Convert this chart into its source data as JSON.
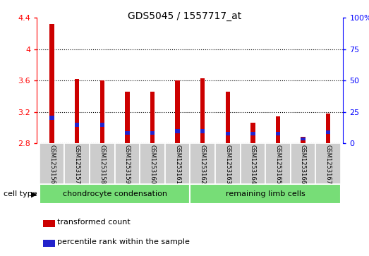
{
  "title": "GDS5045 / 1557717_at",
  "samples": [
    "GSM1253156",
    "GSM1253157",
    "GSM1253158",
    "GSM1253159",
    "GSM1253160",
    "GSM1253161",
    "GSM1253162",
    "GSM1253163",
    "GSM1253164",
    "GSM1253165",
    "GSM1253166",
    "GSM1253167"
  ],
  "red_values": [
    4.32,
    3.62,
    3.6,
    3.46,
    3.46,
    3.6,
    3.63,
    3.46,
    3.06,
    3.14,
    2.88,
    3.18
  ],
  "blue_bottoms": [
    3.1,
    3.01,
    3.01,
    2.91,
    2.91,
    2.93,
    2.93,
    2.9,
    2.9,
    2.9,
    2.84,
    2.92
  ],
  "blue_heights": [
    0.055,
    0.05,
    0.05,
    0.045,
    0.045,
    0.05,
    0.05,
    0.05,
    0.05,
    0.05,
    0.038,
    0.046
  ],
  "bar_base": 2.8,
  "ylim_left": [
    2.8,
    4.4
  ],
  "ylim_right": [
    0,
    100
  ],
  "yticks_left": [
    2.8,
    3.2,
    3.6,
    4.0,
    4.4
  ],
  "yticks_right": [
    0,
    25,
    50,
    75,
    100
  ],
  "ytick_labels_left": [
    "2.8",
    "3.2",
    "3.6",
    "4",
    "4.4"
  ],
  "ytick_labels_right": [
    "0",
    "25",
    "50",
    "75",
    "100%"
  ],
  "group1_samples": 6,
  "group2_samples": 6,
  "group1_label": "chondrocyte condensation",
  "group2_label": "remaining limb cells",
  "cell_type_label": "cell type",
  "legend1": "transformed count",
  "legend2": "percentile rank within the sample",
  "red_color": "#cc0000",
  "blue_color": "#2222cc",
  "group_color": "#77dd77",
  "sample_box_color": "#cccccc",
  "bar_width": 0.18,
  "figsize": [
    5.23,
    3.63
  ],
  "dpi": 100
}
